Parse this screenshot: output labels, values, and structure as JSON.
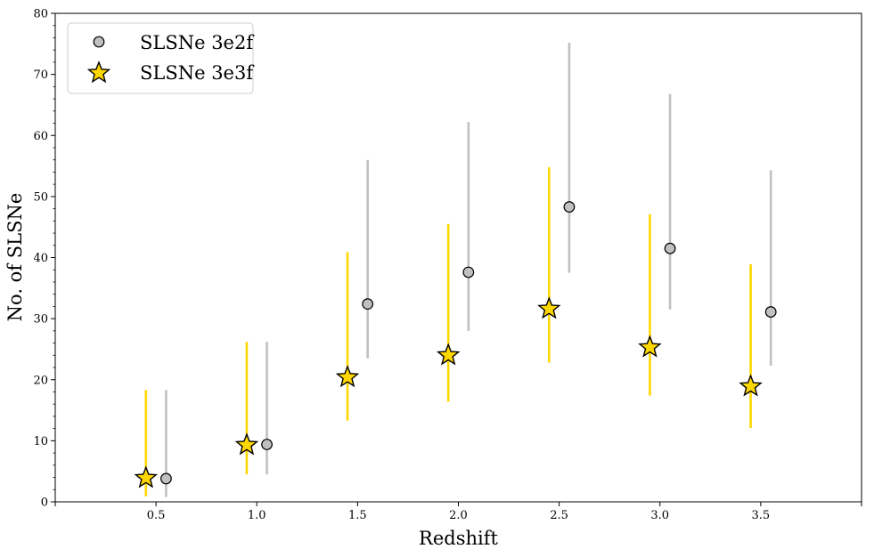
{
  "chart_data": {
    "type": "scatter",
    "xlabel": "Redshift",
    "ylabel": "No. of SLSNe",
    "xlim": [
      0.0,
      4.0
    ],
    "ylim": [
      0,
      80
    ],
    "xticks": [
      "0.5",
      "1.0",
      "1.5",
      "2.0",
      "2.5",
      "3.0",
      "3.5"
    ],
    "yticks": [
      "0",
      "10",
      "20",
      "30",
      "40",
      "50",
      "60",
      "70",
      "80"
    ],
    "grid": false,
    "legend_position": "top-left",
    "series": [
      {
        "name": "SLSNe 3e2f",
        "marker": "circle",
        "color": "#c0c0c0",
        "errorbar_color": "#c0c0c0",
        "x": [
          0.55,
          1.05,
          1.55,
          2.05,
          2.55,
          3.05,
          3.55
        ],
        "y": [
          3.8,
          9.4,
          32.4,
          37.6,
          48.3,
          41.5,
          31.1
        ],
        "y_lower": [
          0.8,
          4.5,
          23.5,
          28.0,
          37.5,
          31.5,
          22.3
        ],
        "y_upper": [
          18.3,
          26.2,
          56.0,
          62.2,
          75.2,
          66.8,
          54.3
        ]
      },
      {
        "name": "SLSNe 3e3f",
        "marker": "star",
        "color": "#ffd700",
        "errorbar_color": "#ffd700",
        "x": [
          0.45,
          0.95,
          1.45,
          1.95,
          2.45,
          2.95,
          3.45
        ],
        "y": [
          3.9,
          9.3,
          20.4,
          24.0,
          31.6,
          25.3,
          18.9
        ],
        "y_lower": [
          0.9,
          4.5,
          13.3,
          16.4,
          22.8,
          17.4,
          12.1
        ],
        "y_upper": [
          18.3,
          26.2,
          40.9,
          45.5,
          54.8,
          47.1,
          38.9
        ]
      }
    ]
  }
}
